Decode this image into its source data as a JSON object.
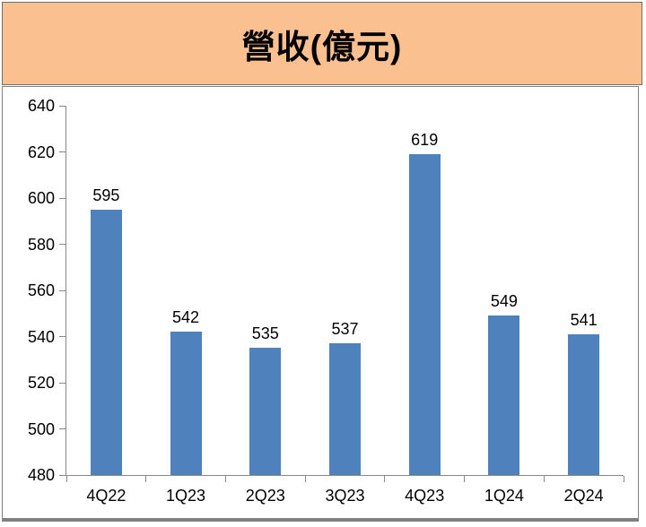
{
  "title_banner": {
    "text": "營收(億元)",
    "bg_color": "#FAC090",
    "border_color": "#6E6E6E",
    "text_color": "#000000"
  },
  "chart_data": {
    "type": "bar",
    "title": "營收(億元)",
    "categories": [
      "4Q22",
      "1Q23",
      "2Q23",
      "3Q23",
      "4Q23",
      "1Q24",
      "2Q24"
    ],
    "values": [
      595,
      542,
      535,
      537,
      619,
      549,
      541
    ],
    "xlabel": "",
    "ylabel": "",
    "ylim": [
      480,
      640
    ],
    "ytick_step": 20,
    "yticks": [
      480,
      500,
      520,
      540,
      560,
      580,
      600,
      620,
      640
    ],
    "grid": false,
    "legend": "none",
    "data_labels": true,
    "bar_color": "#4F81BD",
    "axis_color": "#898989",
    "label_color": "#000000",
    "plot_bg": "#FFFFFF"
  }
}
